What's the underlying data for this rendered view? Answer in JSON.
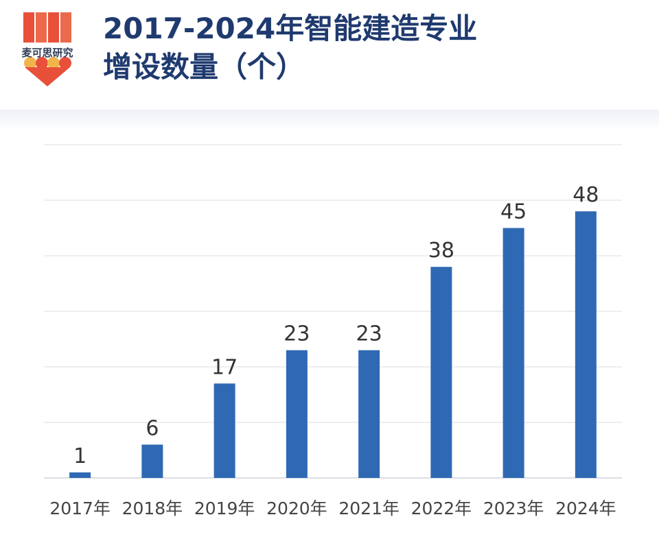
{
  "header": {
    "logo_text": "麦可思研究",
    "title_line1": "2017-2024年智能建造专业",
    "title_line2": "增设数量（个）"
  },
  "chart_data": {
    "type": "bar",
    "title": "2017-2024年智能建造专业增设数量（个）",
    "categories": [
      "2017年",
      "2018年",
      "2019年",
      "2020年",
      "2021年",
      "2022年",
      "2023年",
      "2024年"
    ],
    "values": [
      1,
      6,
      17,
      23,
      23,
      38,
      45,
      48
    ],
    "ylim": [
      0,
      60
    ],
    "grid": true,
    "bar_color": "#2f69b3"
  }
}
